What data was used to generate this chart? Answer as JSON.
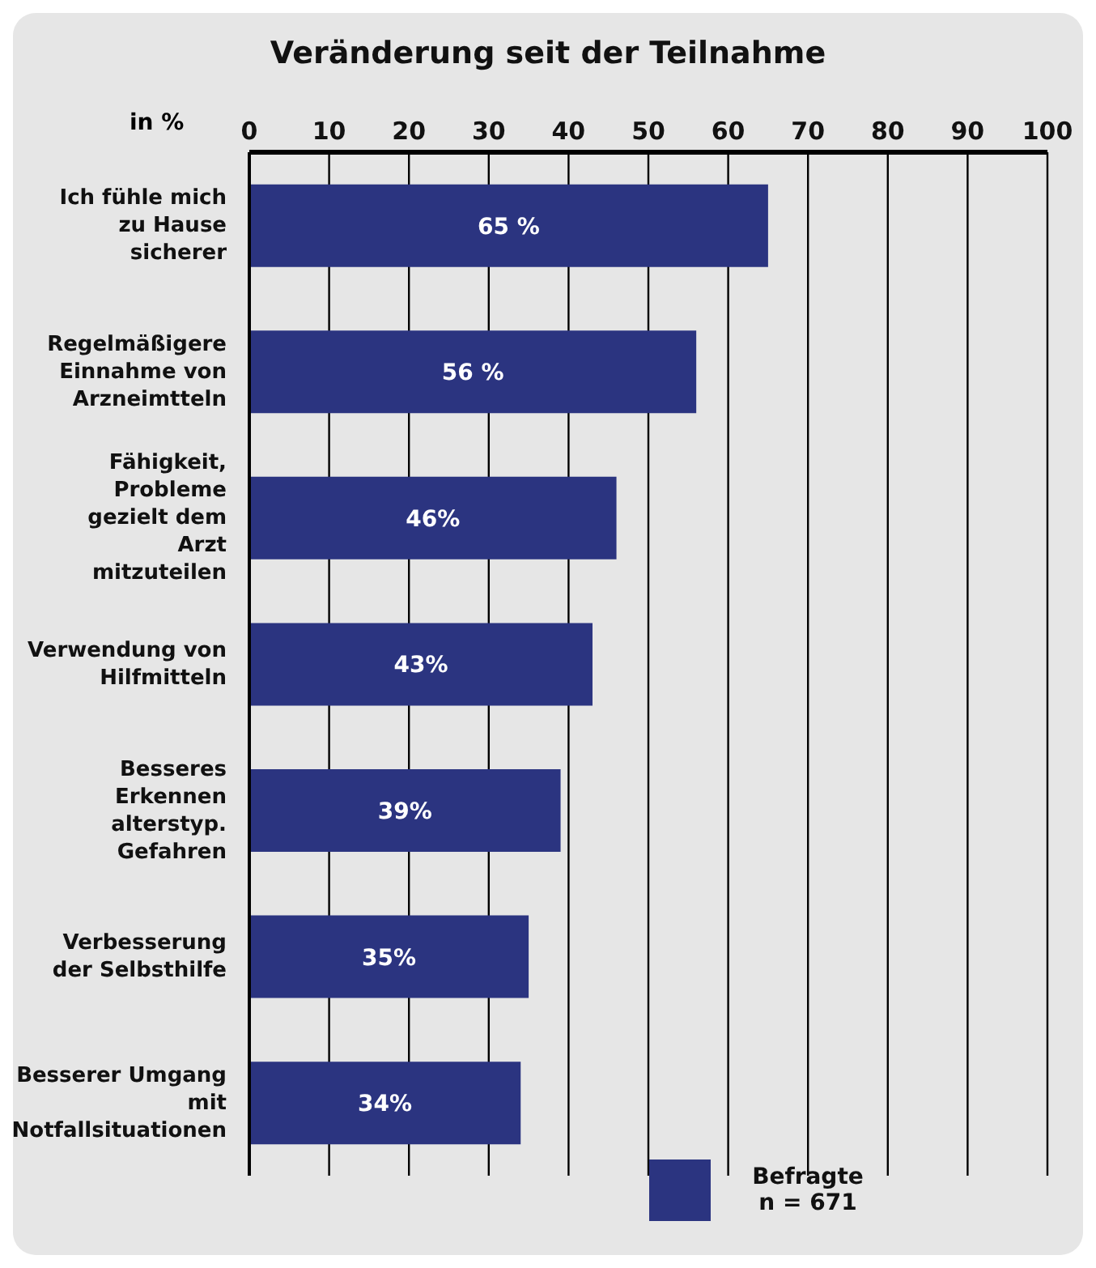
{
  "chart_data": {
    "type": "bar",
    "orientation": "horizontal",
    "title": "Veränderung seit der Teilnahme",
    "xlabel": "in %",
    "categories": [
      "Ich fühle mich zu Hause sicherer",
      "Regelmäßigere Einnahme von Arzneimtteln",
      "Fähigkeit, Probleme gezielt dem Arzt mitzuteilen",
      "Verwendung von Hilfmitteln",
      "Besseres Erkennen alterstyp. Gefahren",
      "Verbesserung der Selbsthilfe",
      "Besserer Umgang mit Notfallsituationen"
    ],
    "series": [
      {
        "name": "Befragte n = 671",
        "color": "#2b3480",
        "values": [
          65,
          56,
          46,
          43,
          39,
          35,
          34
        ],
        "value_labels": [
          "65 %",
          "56 %",
          "46%",
          "43%",
          "39%",
          "35%",
          "34%"
        ]
      }
    ],
    "xlim": [
      0,
      100
    ],
    "xticks": [
      0,
      10,
      20,
      30,
      40,
      50,
      60,
      70,
      80,
      90,
      100
    ],
    "grid": "x",
    "legend": "bottom right"
  }
}
